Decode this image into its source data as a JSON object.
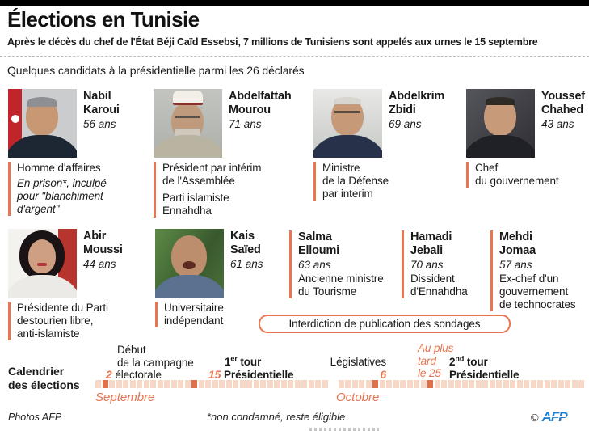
{
  "colors": {
    "accent": "#e87450",
    "strip_light": "#f7d8c6",
    "strip_dark": "#e06f4a",
    "afp_blue": "#1e7fd2"
  },
  "header": {
    "title": "Élections en Tunisie",
    "subtitle": "Après le décès du chef de l'État Béji Caïd Essebsi, 7 millions de Tunisiens sont appelés aux urnes le 15 septembre",
    "intro": "Quelques candidats à la présidentielle parmi les 26 déclarés"
  },
  "candidates": [
    {
      "name": "Nabil\nKaroui",
      "age": "56 ans",
      "role": "Homme d'affaires",
      "note": "En prison*, inculpé\npour \"blanchiment\nd'argent\""
    },
    {
      "name": "Abdelfattah\nMourou",
      "age": "71 ans",
      "role": "Président par intérim\nde l'Assemblée",
      "extra": "Parti islamiste\nEnnahdha"
    },
    {
      "name": "Abdelkrim\nZbidi",
      "age": "69 ans",
      "role": "Ministre\nde la Défense\npar interim"
    },
    {
      "name": "Youssef\nChahed",
      "age": "43 ans",
      "role": "Chef\ndu gouvernement"
    },
    {
      "name": "Abir\nMoussi",
      "age": "44 ans",
      "role": "Présidente du Parti\ndestourien libre,\nanti-islamiste"
    },
    {
      "name": "Kais\nSaïed",
      "age": "61 ans",
      "role": "Universitaire\nindépendant"
    },
    {
      "name": "Salma\nElloumi",
      "age": "63 ans",
      "role": "Ancienne ministre\ndu Tourisme"
    },
    {
      "name": "Hamadi\nJebali",
      "age": "70 ans",
      "role": "Dissident\nd'Ennahdha"
    },
    {
      "name": "Mehdi\nJomaa",
      "age": "57 ans",
      "role": "Ex-chef d'un\ngouvernement\nde technocrates"
    }
  ],
  "sondages_banner": "Interdiction de publication des sondages",
  "timeline": {
    "label": "Calendrier\ndes élections",
    "events": {
      "campaign": {
        "pre": "Début\nde la campagne",
        "date": "2",
        "post": "électorale"
      },
      "round1": {
        "num": "1",
        "sup": "er",
        "tour": " tour",
        "date": "15",
        "post": "Présidentielle"
      },
      "legislative": {
        "label": "Législatives",
        "date": "6"
      },
      "round2": {
        "date_note": "Au plus\ntard\nle 25",
        "num": "2",
        "sup": "nd",
        "tour": " tour",
        "post": "Présidentielle"
      }
    },
    "months": [
      {
        "name": "Septembre",
        "squares": 34,
        "highlight_squares": [
          2,
          15
        ]
      },
      {
        "name": "Octobre",
        "squares": 36,
        "highlight_squares": [
          6,
          14
        ]
      }
    ]
  },
  "footer": {
    "photos": "Photos AFP",
    "footnote": "*non condamné, reste éligible",
    "copyright": "©",
    "logo": "AFP"
  }
}
